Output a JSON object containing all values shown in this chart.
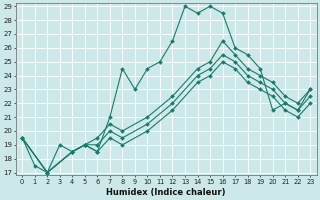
{
  "xlabel": "Humidex (Indice chaleur)",
  "ylabel": "",
  "bg_color": "#cce8e8",
  "grid_color": "#b0d4d4",
  "line_color": "#1a7a6a",
  "marker_color": "#1a7a6a",
  "ylim": [
    17,
    29
  ],
  "xlim": [
    -0.5,
    23.5
  ],
  "yticks": [
    17,
    18,
    19,
    20,
    21,
    22,
    23,
    24,
    25,
    26,
    27,
    28,
    29
  ],
  "xticks": [
    0,
    1,
    2,
    3,
    4,
    5,
    6,
    7,
    8,
    9,
    10,
    11,
    12,
    13,
    14,
    15,
    16,
    17,
    18,
    19,
    20,
    21,
    22,
    23
  ],
  "lines": [
    {
      "x": [
        0,
        1,
        2,
        3,
        4,
        5,
        6,
        7,
        8,
        9,
        10,
        11,
        12,
        13,
        14,
        15,
        16,
        17,
        18,
        19,
        20,
        21,
        22,
        23
      ],
      "y": [
        19.5,
        17.5,
        17.0,
        19.0,
        18.5,
        19.0,
        18.5,
        21.0,
        24.5,
        23.0,
        24.5,
        25.0,
        26.5,
        29.0,
        28.5,
        29.0,
        28.5,
        26.0,
        25.5,
        24.5,
        21.5,
        22.0,
        21.5,
        23.0
      ]
    },
    {
      "x": [
        0,
        2,
        4,
        5,
        6,
        7,
        8,
        10,
        12,
        14,
        15,
        16,
        17,
        18,
        19,
        20,
        21,
        22,
        23
      ],
      "y": [
        19.5,
        17.0,
        18.5,
        19.0,
        19.5,
        20.5,
        20.0,
        21.0,
        22.5,
        24.5,
        25.0,
        26.5,
        25.5,
        24.5,
        24.0,
        23.5,
        22.5,
        22.0,
        23.0
      ]
    },
    {
      "x": [
        0,
        2,
        4,
        5,
        6,
        7,
        8,
        10,
        12,
        14,
        15,
        16,
        17,
        18,
        19,
        20,
        21,
        22,
        23
      ],
      "y": [
        19.5,
        17.0,
        18.5,
        19.0,
        19.0,
        20.0,
        19.5,
        20.5,
        22.0,
        24.0,
        24.5,
        25.5,
        25.0,
        24.0,
        23.5,
        23.0,
        22.0,
        21.5,
        22.5
      ]
    },
    {
      "x": [
        0,
        2,
        4,
        5,
        6,
        7,
        8,
        10,
        12,
        14,
        15,
        16,
        17,
        18,
        19,
        20,
        21,
        22,
        23
      ],
      "y": [
        19.5,
        17.0,
        18.5,
        19.0,
        18.5,
        19.5,
        19.0,
        20.0,
        21.5,
        23.5,
        24.0,
        25.0,
        24.5,
        23.5,
        23.0,
        22.5,
        21.5,
        21.0,
        22.0
      ]
    }
  ]
}
